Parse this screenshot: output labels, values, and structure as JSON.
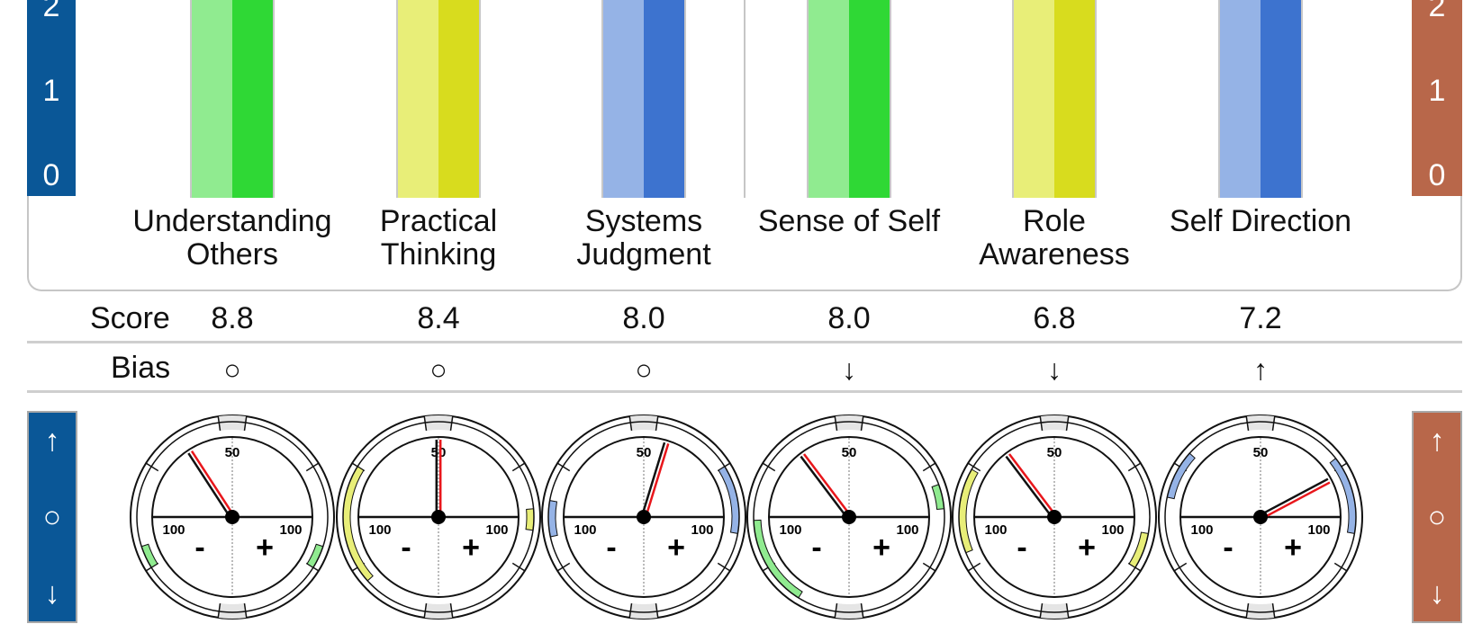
{
  "axis_left": {
    "ticks": [
      "2",
      "1",
      "0"
    ],
    "color": "#0a5797"
  },
  "axis_right": {
    "ticks": [
      "2",
      "1",
      "0"
    ],
    "color": "#b8674a"
  },
  "bias_axis_left": {
    "symbols": [
      "↑",
      "○",
      "↓"
    ]
  },
  "bias_axis_right": {
    "symbols": [
      "↑",
      "○",
      "↓"
    ]
  },
  "rows": {
    "score_label": "Score",
    "bias_label": "Bias"
  },
  "chart_data": {
    "type": "bar",
    "categories": [
      "Understanding Others",
      "Practical Thinking",
      "Systems Judgment",
      "Sense of Self",
      "Role Awareness",
      "Self Direction"
    ],
    "category_lines": [
      [
        "Understanding",
        "Others"
      ],
      [
        "Practical",
        "Thinking"
      ],
      [
        "Systems",
        "Judgment"
      ],
      [
        "Sense of Self",
        ""
      ],
      [
        "Role",
        "Awareness"
      ],
      [
        "Self Direction",
        ""
      ]
    ],
    "ylim": [
      0,
      2
    ],
    "y_ticks": [
      "0",
      "1",
      "2"
    ],
    "colors": [
      {
        "light": "#90eb90",
        "dark": "#2fd835"
      },
      {
        "light": "#e8ee78",
        "dark": "#d8dc1e"
      },
      {
        "light": "#95b3e6",
        "dark": "#3d73cf"
      },
      {
        "light": "#90eb90",
        "dark": "#2fd835"
      },
      {
        "light": "#e8ee78",
        "dark": "#d8dc1e"
      },
      {
        "light": "#95b3e6",
        "dark": "#3d73cf"
      }
    ],
    "scores": [
      "8.8",
      "8.4",
      "8.0",
      "8.0",
      "6.8",
      "7.2"
    ],
    "bias": [
      "○",
      "○",
      "○",
      "↓",
      "↓",
      "↑"
    ],
    "gauges": {
      "scale_labels": {
        "top": "50",
        "left": "100",
        "right": "100",
        "minus": "-",
        "plus": "+"
      },
      "needle_angles_deg": [
        -33,
        0,
        17,
        -37,
        -37,
        62
      ],
      "arcs": [
        {
          "left": [
            -122,
            -108
          ],
          "right": [
            108,
            122
          ]
        },
        {
          "left": [
            -132,
            -58
          ],
          "right": [
            85,
            98
          ]
        },
        {
          "left": [
            -102,
            -80
          ],
          "right": [
            58,
            100
          ]
        },
        {
          "left": [
            -148,
            -92
          ],
          "right": [
            70,
            85
          ]
        },
        {
          "left": [
            -112,
            -60
          ],
          "right": [
            100,
            122
          ]
        },
        {
          "left": [
            -78,
            -48
          ],
          "right": [
            52,
            100
          ]
        }
      ]
    }
  }
}
